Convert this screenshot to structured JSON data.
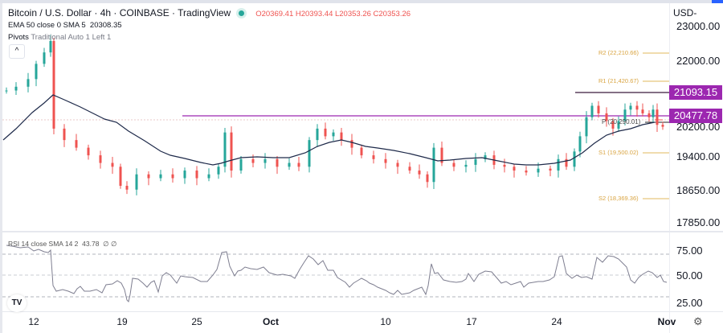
{
  "header": {
    "symbol_title": "Bitcoin / U.S. Dollar · 4h · COINBASE · TradingView",
    "ohlc": "O20369.41 H20393.44 L20353.26 C20353.26",
    "ema_legend_label": "EMA 50 close 0 SMA 5",
    "ema_legend_value": "20308.35",
    "pivots_legend_label": "Pivots",
    "pivots_legend_args": "Traditional Auto 1 Left 1",
    "collapse_icon": "^"
  },
  "price_axis": {
    "currency": "USD",
    "currency_suffix": "-",
    "ticks": [
      "23000.00",
      "22000.00",
      "20200.00",
      "19400.00",
      "18650.00",
      "17850.00"
    ],
    "tags": [
      {
        "label": "21093.15",
        "color": "#9c27b0"
      },
      {
        "label": "20477.78",
        "color": "#9c27b0"
      }
    ]
  },
  "pivots": {
    "R2": "R2 (22,210.66)",
    "R1": "R1 (21,420.67)",
    "P": "P (20,290.01)",
    "S1": "S1 (19,500.02)",
    "S2": "S2 (18,369.36)"
  },
  "rsi": {
    "legend": "RSI 14 close SMA 14 2",
    "value": "43.78",
    "extra": "∅ ∅",
    "ticks": [
      "75.00",
      "50.00",
      "25.00"
    ]
  },
  "time_axis": {
    "labels": [
      "12",
      "19",
      "25",
      "Oct",
      "10",
      "17",
      "24",
      "Nov"
    ]
  },
  "branding": {
    "logo": "TV"
  },
  "colors": {
    "up": "#26a69a",
    "down": "#ef5350",
    "ema": "#1e2a4a",
    "horizontal_line": "#9c27b0",
    "resistance_line": "#3b1a3f",
    "pivot_label": "#d9a441",
    "rsi_line": "#7e7e90"
  },
  "chart_data": [
    {
      "type": "candlestick",
      "title": "Bitcoin / U.S. Dollar · 4h · COINBASE",
      "xlabel": "",
      "ylabel": "USD",
      "x_ticks": [
        "12",
        "19",
        "25",
        "Oct",
        "10",
        "17",
        "24",
        "Nov"
      ],
      "y_ticks": [
        23000,
        22000,
        20200,
        19400,
        18650,
        17850
      ],
      "ylim": [
        17500,
        23300
      ],
      "approx_close_path": {
        "x": [
          "Sep 11",
          "Sep 12",
          "Sep 13",
          "Sep 14",
          "Sep 16",
          "Sep 19",
          "Sep 21",
          "Sep 23",
          "Sep 26",
          "Sep 28",
          "Oct 1",
          "Oct 4",
          "Oct 6",
          "Oct 8",
          "Oct 11",
          "Oct 13",
          "Oct 14",
          "Oct 17",
          "Oct 20",
          "Oct 23",
          "Oct 25",
          "Oct 26",
          "Oct 28",
          "Oct 29",
          "Oct 31"
        ],
        "y": [
          21300,
          21500,
          22400,
          20300,
          19800,
          19200,
          18800,
          19100,
          19000,
          20200,
          19500,
          20300,
          20200,
          19600,
          19100,
          19000,
          19700,
          19300,
          19200,
          19400,
          20100,
          20800,
          20300,
          20900,
          20350
        ]
      },
      "overlays": {
        "ema50_last": 20308.35,
        "horizontal_lines": [
          21093.15,
          20477.78
        ],
        "pivots": {
          "R2": 22210.66,
          "R1": 21420.67,
          "P": 20290.01,
          "S1": 19500.02,
          "S2": 18369.36
        }
      },
      "last_ohlc": {
        "open": 20369.41,
        "high": 20393.44,
        "low": 20353.26,
        "close": 20353.26
      }
    },
    {
      "type": "line",
      "title": "RSI 14 close SMA 14 2",
      "y_ticks": [
        75,
        50,
        25
      ],
      "ylim": [
        15,
        90
      ],
      "last_value": 43.78,
      "approx_values": [
        75,
        74,
        76,
        72,
        32,
        33,
        31,
        35,
        33,
        40,
        45,
        42,
        22,
        44,
        38,
        40,
        36,
        47,
        50,
        45,
        48,
        52,
        46,
        68,
        49,
        58,
        53,
        55,
        52,
        50,
        50,
        71,
        60,
        64,
        53,
        52,
        48,
        45,
        43,
        36,
        40,
        38,
        32,
        28,
        30,
        33,
        40,
        24,
        55,
        67,
        50,
        48,
        46,
        52,
        62,
        65,
        48,
        45,
        44,
        40,
        42,
        40,
        48,
        50,
        52,
        48,
        68,
        55,
        52,
        50,
        78,
        72,
        78,
        74,
        70,
        55,
        48,
        62,
        64,
        60,
        65,
        60,
        55,
        50,
        56,
        45,
        43.78
      ]
    }
  ]
}
